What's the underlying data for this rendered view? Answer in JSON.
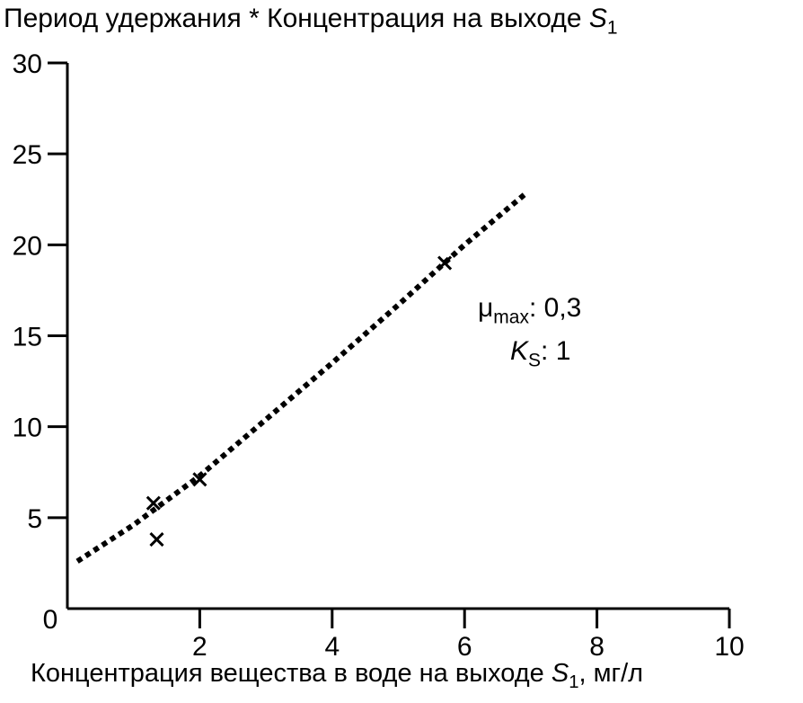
{
  "chart_data": {
    "type": "scatter",
    "title": {
      "main": "Период удержания * Концентрация на выходе ",
      "var": "S",
      "sub": "1"
    },
    "xlabel": {
      "main": "Концентрация вещества в воде на выходе ",
      "var": "S",
      "sub": "1",
      "suffix": ", мг/л"
    },
    "xlim": [
      0,
      10
    ],
    "ylim": [
      0,
      30
    ],
    "x_ticks": [
      2,
      4,
      6,
      8,
      10
    ],
    "y_ticks": [
      5,
      10,
      15,
      20,
      25,
      30
    ],
    "origin_label": "0",
    "grid": false,
    "series": [
      {
        "marker": "x",
        "points": [
          {
            "x": 1.3,
            "y": 5.8
          },
          {
            "x": 1.35,
            "y": 3.8
          },
          {
            "x": 2.0,
            "y": 7.1
          },
          {
            "x": 5.7,
            "y": 19.0
          }
        ]
      },
      {
        "style": "dotted-line",
        "points": [
          {
            "x": 0.15,
            "y": 2.6
          },
          {
            "x": 1.0,
            "y": 4.6
          },
          {
            "x": 2.0,
            "y": 7.3
          },
          {
            "x": 3.0,
            "y": 10.4
          },
          {
            "x": 4.0,
            "y": 13.5
          },
          {
            "x": 5.0,
            "y": 16.7
          },
          {
            "x": 6.0,
            "y": 20.0
          },
          {
            "x": 6.95,
            "y": 22.9
          }
        ]
      }
    ],
    "annotations": {
      "mu_symbol": "μ",
      "mu_sub": "max",
      "mu_value": ": 0,3",
      "ks_symbol": "K",
      "ks_sub": "S",
      "ks_value": ": 1"
    }
  }
}
